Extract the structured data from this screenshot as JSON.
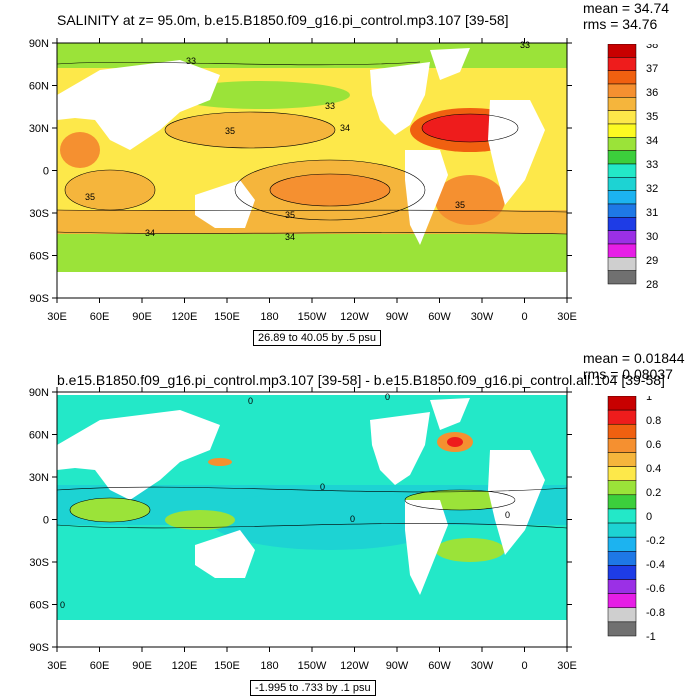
{
  "top": {
    "title": "SALINITY at z=  95.0m, b.e15.B1850.f09_g16.pi_control.mp3.107 [39-58]",
    "stats": [
      "mean = 34.74",
      "rms = 34.76"
    ],
    "range_note": "26.89 to 40.05 by .5 psu",
    "lat_labels": [
      "90N",
      "60N",
      "30N",
      "0",
      "30S",
      "60S",
      "90S"
    ],
    "lon_labels": [
      "30E",
      "60E",
      "90E",
      "120E",
      "150E",
      "180",
      "150W",
      "120W",
      "90W",
      "60W",
      "30W",
      "0",
      "30E"
    ],
    "contour_labels": [
      "33",
      "33",
      "33",
      "34",
      "35",
      "35",
      "35",
      "35",
      "34",
      "34"
    ],
    "colorbar": {
      "labels": [
        "38",
        "37",
        "36",
        "35",
        "34",
        "33",
        "32",
        "31",
        "30",
        "29",
        "28"
      ],
      "colors": [
        "#c80000",
        "#ee1c1c",
        "#f06010",
        "#f59030",
        "#f5b53c",
        "#fde84a",
        "#fcfa22",
        "#9be339",
        "#3ccf3c",
        "#23e8c8",
        "#1dd3d3",
        "#1cb3f0",
        "#1e78e6",
        "#1e3ce6",
        "#9b30e6",
        "#e61ee6",
        "#cfcfcf",
        "#707070"
      ]
    }
  },
  "bottom": {
    "title": "b.e15.B1850.f09_g16.pi_control.mp3.107 [39-58] - b.e15.B1850.f09_g16.pi_control.all.104 [39-58]",
    "stats": [
      "mean = 0.01844",
      "rms = 0.08037"
    ],
    "range_note": "-1.995 to .733 by .1 psu",
    "lat_labels": [
      "90N",
      "60N",
      "30N",
      "0",
      "30S",
      "60S",
      "90S"
    ],
    "lon_labels": [
      "30E",
      "60E",
      "90E",
      "120E",
      "150E",
      "180",
      "150W",
      "120W",
      "90W",
      "60W",
      "30W",
      "0",
      "30E"
    ],
    "contour_labels": [
      "0",
      "0",
      "0",
      "0",
      "0",
      "0"
    ],
    "colorbar": {
      "labels": [
        "1",
        "0.8",
        "0.6",
        "0.4",
        "0.2",
        "0",
        "-0.2",
        "-0.4",
        "-0.6",
        "-0.8",
        "-1"
      ],
      "colors": [
        "#c80000",
        "#ee1c1c",
        "#f06010",
        "#f59030",
        "#f5b53c",
        "#fde84a",
        "#9be339",
        "#3ccf3c",
        "#23e8c8",
        "#1dd3d3",
        "#1cb3f0",
        "#1e78e6",
        "#1e3ce6",
        "#9b30e6",
        "#e61ee6",
        "#cfcfcf",
        "#707070"
      ]
    }
  }
}
